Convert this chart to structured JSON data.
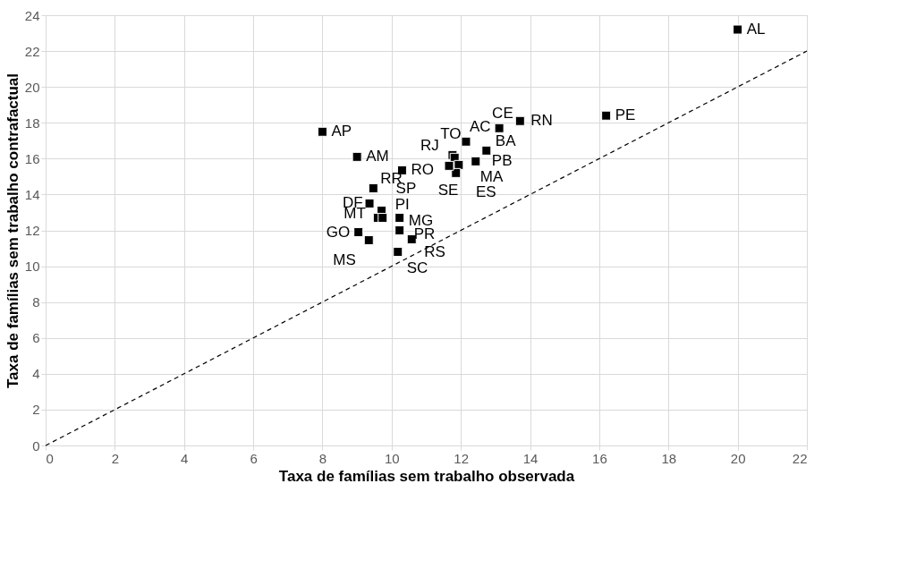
{
  "chart_data": {
    "type": "scatter",
    "xlabel": "Taxa de famílias sem trabalho observada",
    "ylabel": "Taxa de famílias sem trabalho contrafactual",
    "xlim": [
      0,
      22
    ],
    "xticks": [
      0,
      2,
      4,
      6,
      8,
      10,
      12,
      14,
      16,
      18,
      20,
      22
    ],
    "ylim": [
      0,
      24
    ],
    "yticks": [
      0,
      2,
      4,
      6,
      8,
      10,
      12,
      14,
      16,
      18,
      20,
      22,
      24
    ],
    "grid": true,
    "legend": false,
    "marker": "square",
    "series": [
      {
        "color": "#000000",
        "x": [
          20.0,
          16.2,
          8.0,
          9.0,
          10.3,
          9.47,
          9.36,
          9.71,
          9.6,
          9.74,
          10.23,
          10.23,
          9.04,
          10.58,
          9.34,
          10.18,
          12.15,
          12.74,
          12.43,
          13.11,
          13.71,
          11.76,
          11.82,
          11.94,
          11.86,
          11.66
        ],
        "values": [
          23.2,
          18.4,
          17.5,
          16.1,
          15.35,
          14.35,
          13.5,
          13.1,
          12.7,
          12.7,
          12.7,
          12.0,
          11.9,
          11.5,
          11.45,
          10.8,
          16.95,
          16.45,
          15.85,
          17.7,
          18.1,
          16.2,
          16.05,
          15.65,
          15.2,
          15.6
        ]
      },
      {
        "type": "line",
        "color": "#000000",
        "line_style": "dashed",
        "marker": "none",
        "x": [
          0,
          22
        ],
        "values": [
          0,
          22
        ]
      }
    ],
    "annotations": [
      {
        "text": "AL",
        "x": 20.0,
        "y": 23.2
      },
      {
        "text": "PE",
        "x": 16.2,
        "y": 18.4
      },
      {
        "text": "AP",
        "x": 8.0,
        "y": 17.5
      },
      {
        "text": "AM",
        "x": 9.0,
        "y": 16.1
      },
      {
        "text": "RO",
        "x": 10.3,
        "y": 15.35
      },
      {
        "text": "RR",
        "x": 9.47,
        "y": 14.35
      },
      {
        "text": "DF",
        "x": 9.36,
        "y": 13.5
      },
      {
        "text": "SP",
        "x": 9.71,
        "y": 13.1
      },
      {
        "text": "MT",
        "x": 9.6,
        "y": 12.7
      },
      {
        "text": "PI",
        "x": 9.74,
        "y": 12.7
      },
      {
        "text": "MG",
        "x": 10.23,
        "y": 12.7
      },
      {
        "text": "PR",
        "x": 10.23,
        "y": 12.0
      },
      {
        "text": "GO",
        "x": 9.04,
        "y": 11.9
      },
      {
        "text": "RS",
        "x": 10.58,
        "y": 11.5
      },
      {
        "text": "MS",
        "x": 9.34,
        "y": 11.45
      },
      {
        "text": "SC",
        "x": 10.18,
        "y": 10.8
      },
      {
        "text": "AC",
        "x": 12.15,
        "y": 16.95
      },
      {
        "text": "BA",
        "x": 12.74,
        "y": 16.45
      },
      {
        "text": "PB",
        "x": 12.43,
        "y": 15.85
      },
      {
        "text": "CE",
        "x": 13.11,
        "y": 17.7
      },
      {
        "text": "RN",
        "x": 13.71,
        "y": 18.1
      },
      {
        "text": "RJ",
        "x": 11.76,
        "y": 16.2
      },
      {
        "text": "TO",
        "x": 11.82,
        "y": 16.05
      },
      {
        "text": "MA",
        "x": 11.94,
        "y": 15.65
      },
      {
        "text": "SE",
        "x": 11.86,
        "y": 15.2
      },
      {
        "text": "ES",
        "x": 11.66,
        "y": 15.6
      }
    ]
  }
}
